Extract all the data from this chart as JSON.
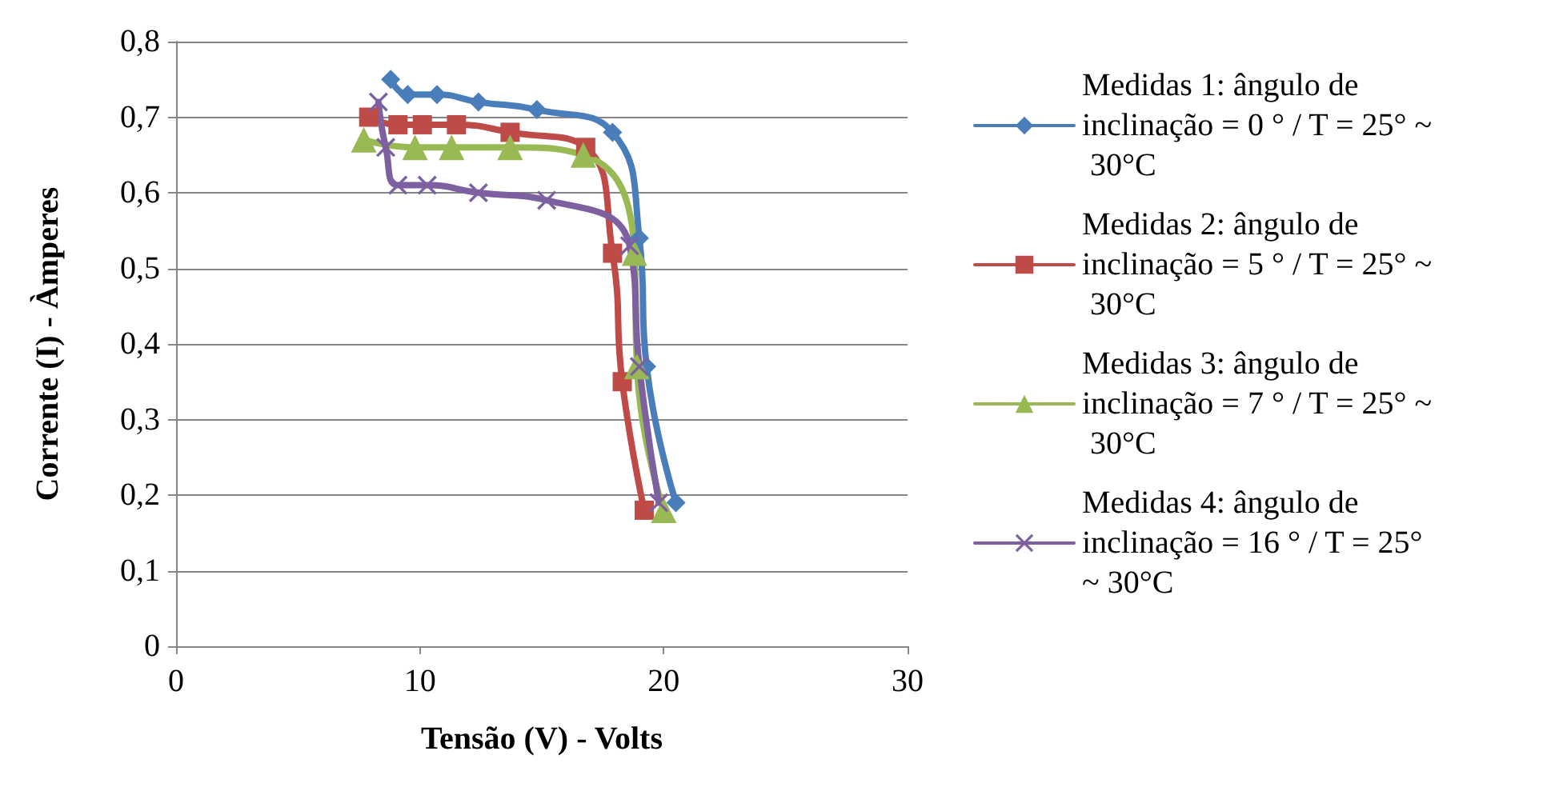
{
  "chart_data": {
    "type": "line",
    "xlabel": "Tensão (V) - Volts",
    "ylabel": "Corrente (I) - Àmperes",
    "xlim": [
      0,
      30
    ],
    "xticks": [
      0,
      10,
      20,
      30
    ],
    "ylim": [
      0,
      0.8
    ],
    "yticks": [
      0,
      {
        "value": 0.1,
        "label": "0,1"
      },
      {
        "value": 0.2,
        "label": "0,2"
      },
      {
        "value": 0.3,
        "label": "0,3"
      },
      {
        "value": 0.4,
        "label": "0,4"
      },
      {
        "value": 0.5,
        "label": "0,5"
      },
      {
        "value": 0.6,
        "label": "0,6"
      },
      {
        "value": 0.7,
        "label": "0,7"
      },
      {
        "value": 0.8,
        "label": "0,8"
      }
    ],
    "grid": "y",
    "legend": "right",
    "line_style": "solid",
    "series": [
      {
        "name": "Medidas 1: ângulo de inclinação = 0 ° / T = 25° ~ 30°C",
        "color": "#4a7ebb",
        "marker": "diamond",
        "x": [
          8.8,
          9.5,
          10.7,
          12.4,
          14.8,
          17.9,
          19.0,
          19.3,
          20.5
        ],
        "values": [
          0.75,
          0.73,
          0.73,
          0.72,
          0.71,
          0.68,
          0.54,
          0.37,
          0.19
        ]
      },
      {
        "name": "Medidas 2: ângulo de inclinação = 5 ° / T = 25° ~ 30°C",
        "color": "#be4b48",
        "marker": "square",
        "x": [
          7.9,
          9.1,
          10.1,
          11.5,
          13.7,
          16.8,
          17.9,
          18.3,
          19.2
        ],
        "values": [
          0.7,
          0.69,
          0.69,
          0.69,
          0.68,
          0.66,
          0.52,
          0.35,
          0.18
        ]
      },
      {
        "name": "Medidas 3: ângulo de inclinação = 7 ° / T = 25° ~ 30°C",
        "color": "#98b954",
        "marker": "triangle",
        "x": [
          7.7,
          9.8,
          11.3,
          13.7,
          16.7,
          18.8,
          18.9,
          20.0
        ],
        "values": [
          0.67,
          0.66,
          0.66,
          0.66,
          0.65,
          0.52,
          0.37,
          0.18
        ]
      },
      {
        "name": "Medidas 4: ângulo de inclinação = 16 ° / T = 25° ~ 30°C",
        "color": "#7d60a0",
        "marker": "cross",
        "x": [
          8.3,
          8.6,
          9.1,
          10.3,
          12.4,
          15.2,
          18.6,
          19.0,
          19.8
        ],
        "values": [
          0.72,
          0.66,
          0.61,
          0.61,
          0.6,
          0.59,
          0.53,
          0.37,
          0.19
        ]
      }
    ]
  }
}
